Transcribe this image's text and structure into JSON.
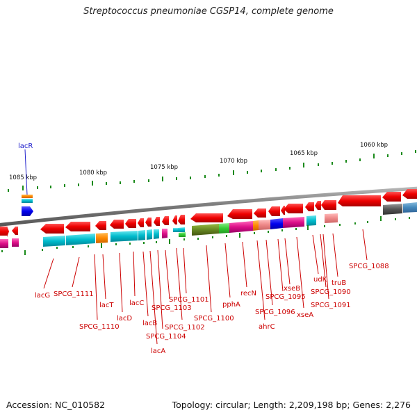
{
  "title": "Streptococcus pneumoniae CGSP14, complete genome",
  "footer": {
    "accession": "Accession: NC_010582",
    "summary": "Topology: circular; Length: 2,209,198 bp; Genes: 2,276"
  },
  "ruler_labels": [
    "1085 kbp",
    "1080 kbp",
    "1075 kbp",
    "1070 kbp",
    "1065 kbp",
    "1060 kbp"
  ],
  "gene_labels": {
    "lacR": "lacR",
    "lacG": "lacG",
    "SPCG_1111": "SPCG_1111",
    "SPCG_1110": "SPCG_1110",
    "lacT": "lacT",
    "lacD": "lacD",
    "lacC": "lacC",
    "lacB": "lacB",
    "SPCG_1104": "SPCG_1104",
    "lacA": "lacA",
    "SPCG_1103": "SPCG_1103",
    "SPCG_1102": "SPCG_1102",
    "SPCG_1101": "SPCG_1101",
    "SPCG_1100": "SPCG_1100",
    "pphA": "pphA",
    "recN": "recN",
    "SPCG_1096": "SPCG_1096",
    "ahrC": "ahrC",
    "SPCG_1095": "SPCG_1095",
    "xseB": "xseB",
    "xseA": "xseA",
    "udK": "udK",
    "SPCG_1090": "SPCG_1090",
    "SPCG_1091": "SPCG_1091",
    "truB": "truB",
    "SPCG_1088": "SPCG_1088"
  },
  "colors": {
    "gene_red": "#ee0000",
    "backbone": "#888888",
    "ticks": "#1a8a1a",
    "cyan": "#00bbcc",
    "magenta": "#dd1188",
    "orange": "#ff8800",
    "olive": "#668822",
    "green": "#33cc33",
    "salmon": "#ee8888",
    "blue": "#0000ee",
    "dark_gray": "#555555",
    "steel_blue": "#4488bb"
  }
}
